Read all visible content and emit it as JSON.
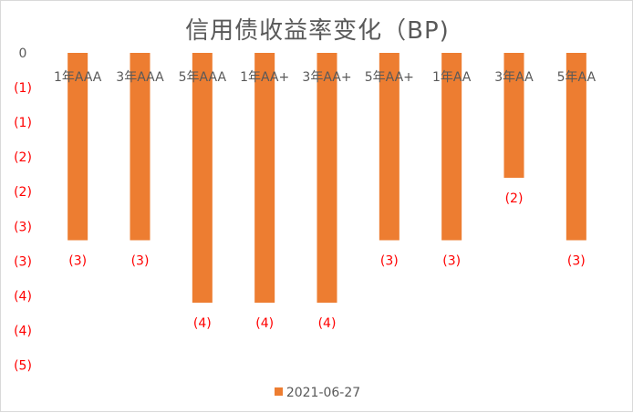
{
  "chart_data": {
    "type": "bar",
    "title": "信用债收益率变化（BP)",
    "categories": [
      "1年AAA",
      "3年AAA",
      "5年AAA",
      "1年AA+",
      "3年AA+",
      "5年AA+",
      "1年AA",
      "3年AA",
      "5年AA"
    ],
    "series": [
      {
        "name": "2021-06-27",
        "values": [
          -3,
          -3,
          -4,
          -4,
          -4,
          -3,
          -3,
          -2,
          -3
        ],
        "labels": [
          "(3)",
          "(3)",
          "(4)",
          "(4)",
          "(4)",
          "(3)",
          "(3)",
          "(2)",
          "(3)"
        ]
      }
    ],
    "ylim": [
      -5,
      0
    ],
    "y_tick_labels": [
      "0",
      "(1)",
      "(1)",
      "(2)",
      "(2)",
      "(3)",
      "(3)",
      "(4)",
      "(4)",
      "(5)"
    ],
    "grid": false,
    "legend_position": "bottom",
    "colors": {
      "bar": "#ED7D31",
      "negative_label": "#FF0000",
      "axis_text": "#595959"
    }
  }
}
